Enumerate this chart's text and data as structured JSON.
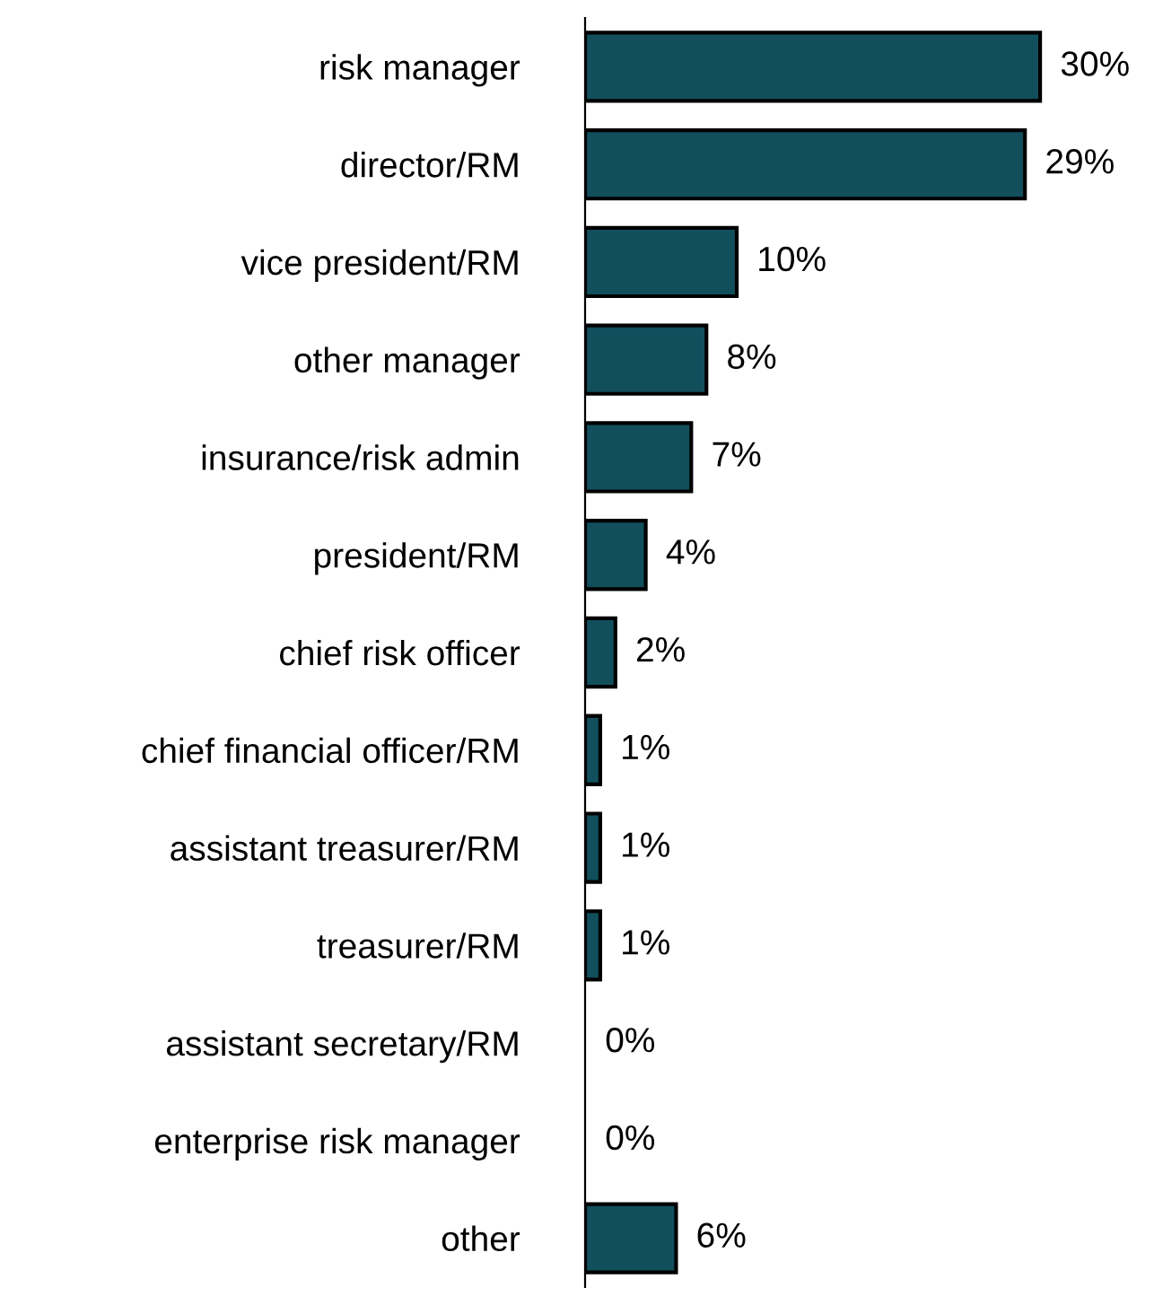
{
  "chart_data": {
    "type": "bar",
    "orientation": "horizontal",
    "categories": [
      "risk manager",
      "director/RM",
      "vice president/RM",
      "other manager",
      "insurance/risk admin",
      "president/RM",
      "chief risk officer",
      "chief financial officer/RM",
      "assistant treasurer/RM",
      "treasurer/RM",
      "assistant secretary/RM",
      "enterprise risk manager",
      "other"
    ],
    "values": [
      30,
      29,
      10,
      8,
      7,
      4,
      2,
      1,
      1,
      1,
      0,
      0,
      6
    ],
    "value_labels": [
      "30%",
      "29%",
      "10%",
      "8%",
      "7%",
      "4%",
      "2%",
      "1%",
      "1%",
      "1%",
      "0%",
      "0%",
      "6%"
    ],
    "color": "#124f5c",
    "grid": false,
    "legend": false
  }
}
